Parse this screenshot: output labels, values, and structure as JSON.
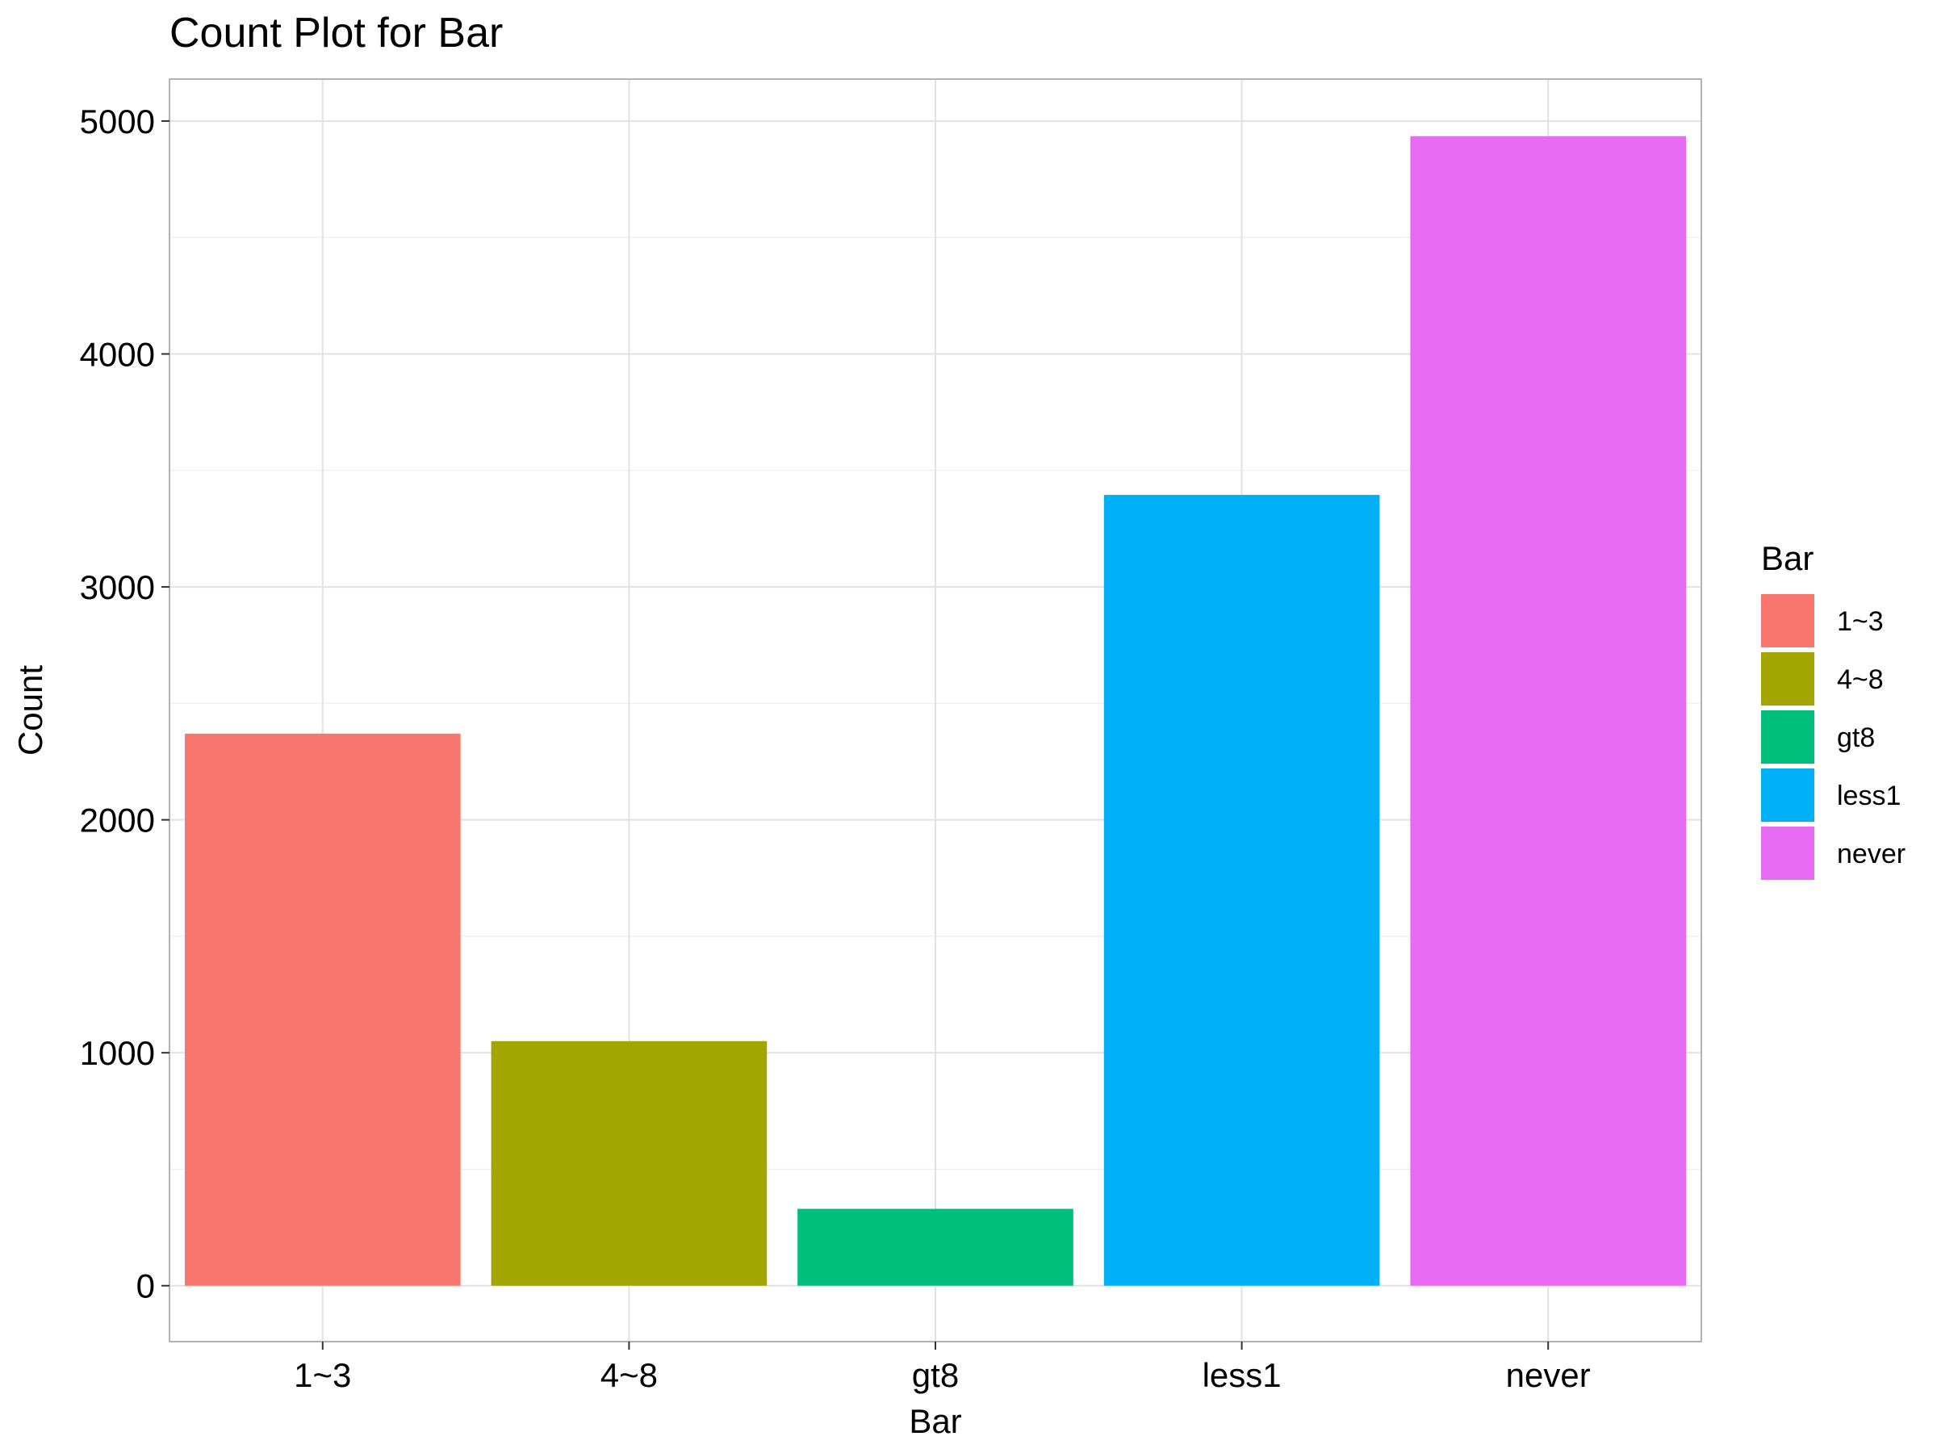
{
  "chart_data": {
    "type": "bar",
    "title": "Count Plot for Bar",
    "xlabel": "Bar",
    "ylabel": "Count",
    "categories": [
      "1~3",
      "4~8",
      "gt8",
      "less1",
      "never"
    ],
    "values": [
      2370,
      1050,
      330,
      3395,
      4935
    ],
    "colors": [
      "#F8766D",
      "#A3A500",
      "#00BF7D",
      "#00B0F6",
      "#E76BF3"
    ],
    "ylim": [
      -240,
      5180
    ],
    "yticks": [
      0,
      1000,
      2000,
      3000,
      4000,
      5000
    ],
    "grid": true,
    "legend": {
      "title": "Bar",
      "position": "right",
      "entries": [
        "1~3",
        "4~8",
        "gt8",
        "less1",
        "never"
      ]
    }
  }
}
